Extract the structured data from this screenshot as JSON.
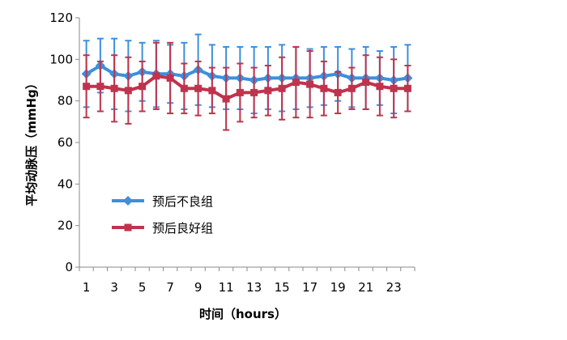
{
  "chart_data": {
    "type": "line",
    "xlabel": "时间（hours）",
    "ylabel": "平均动脉压（mmHg）",
    "ylim": [
      0,
      120
    ],
    "xlim": [
      1,
      24
    ],
    "y_ticks": [
      0,
      20,
      40,
      60,
      80,
      100,
      120
    ],
    "x_ticks": [
      1,
      3,
      5,
      7,
      9,
      11,
      13,
      15,
      17,
      19,
      21,
      23
    ],
    "x": [
      1,
      2,
      3,
      4,
      5,
      6,
      7,
      8,
      9,
      10,
      11,
      12,
      13,
      14,
      15,
      16,
      17,
      18,
      19,
      20,
      21,
      22,
      23,
      24
    ],
    "grid": false,
    "legend_position": "center-left",
    "series": [
      {
        "name": "预后不良组",
        "color": "#3d8fdb",
        "marker": "diamond",
        "values": [
          93,
          97,
          93,
          92,
          94,
          93,
          93,
          92,
          95,
          92,
          91,
          91,
          90,
          91,
          91,
          91,
          91,
          92,
          93,
          91,
          91,
          91,
          90,
          91
        ],
        "error": [
          16,
          13,
          17,
          17,
          14,
          16,
          14,
          16,
          17,
          15,
          15,
          15,
          16,
          15,
          16,
          15,
          14,
          14,
          13,
          14,
          15,
          13,
          16,
          16
        ]
      },
      {
        "name": "预后良好组",
        "color": "#c0334d",
        "marker": "square",
        "values": [
          87,
          87,
          86,
          85,
          87,
          92,
          91,
          86,
          86,
          85,
          81,
          84,
          84,
          85,
          86,
          89,
          88,
          86,
          84,
          86,
          89,
          87,
          86,
          86
        ],
        "error": [
          15,
          12,
          16,
          16,
          12,
          16,
          17,
          12,
          13,
          11,
          15,
          14,
          12,
          12,
          15,
          17,
          16,
          13,
          10,
          10,
          13,
          14,
          14,
          11
        ]
      }
    ]
  }
}
